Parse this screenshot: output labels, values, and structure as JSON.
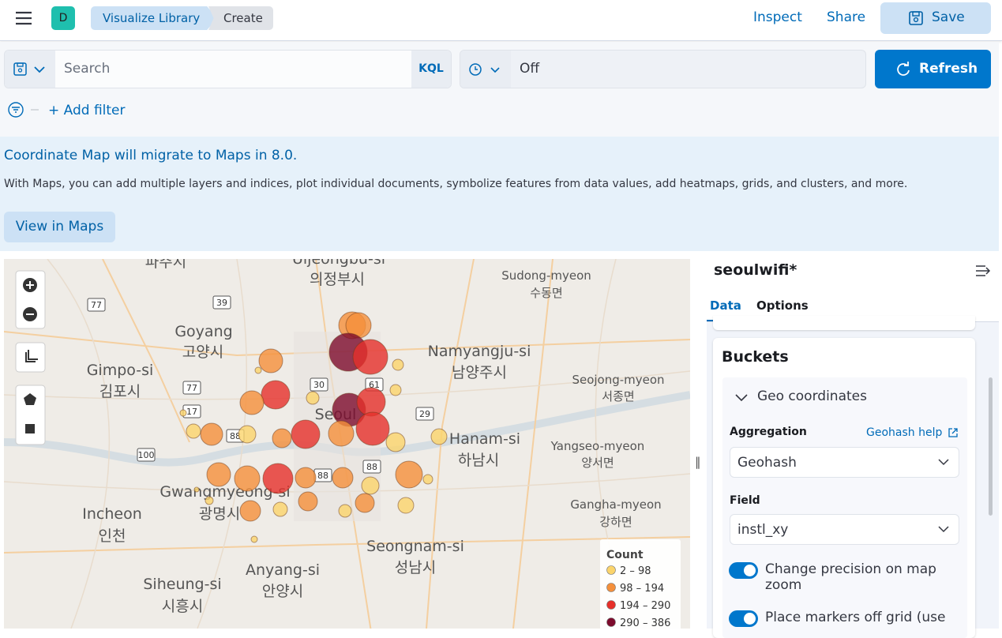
{
  "header": {
    "avatar": "D",
    "breadcrumbs": [
      "Visualize Library",
      "Create"
    ],
    "actions": {
      "inspect": "Inspect",
      "share": "Share",
      "save": "Save"
    }
  },
  "query_bar": {
    "search_placeholder": "Search",
    "language": "KQL",
    "refresh_interval": "Off",
    "refresh_button": "Refresh",
    "add_filter": "+ Add filter"
  },
  "callout": {
    "title": "Coordinate Map will migrate to Maps in 8.0.",
    "body": "With Maps, you can add multiple layers and indices, plot individual documents, symbolize features from data values, add heatmaps, grids, and clusters, and more.",
    "button": "View in Maps"
  },
  "map": {
    "places": [
      "Uijeongbu-si",
      "의정부시",
      "Sudong-myeon",
      "수동면",
      "Goyang",
      "고양시",
      "Namyangju-si",
      "남양주시",
      "Gimpo-si",
      "김포시",
      "Seojong-myeon",
      "서종면",
      "Seoul",
      "Hanam-si",
      "하남시",
      "Yangseo-myeon",
      "양서면",
      "Gwangmyeong-si",
      "광명시",
      "Gangha-myeon",
      "강하면",
      "Incheon",
      "인천",
      "Seongnam-si",
      "성남시",
      "Anyang-si",
      "안양시",
      "Siheung-si",
      "시흥시",
      "파주시"
    ],
    "road_numbers": [
      "77",
      "39",
      "77",
      "30",
      "61",
      "17",
      "29",
      "88",
      "100",
      "88",
      "88"
    ],
    "legend": {
      "title": "Count",
      "items": [
        {
          "label": "2 – 98",
          "color": "#fbd46b"
        },
        {
          "label": "98 – 194",
          "color": "#f5903b"
        },
        {
          "label": "194 – 290",
          "color": "#e6302a"
        },
        {
          "label": "290 – 386",
          "color": "#7d0b2d"
        }
      ]
    }
  },
  "sidebar": {
    "index_pattern": "seoulwifi*",
    "tabs": [
      "Data",
      "Options"
    ],
    "buckets": {
      "title": "Buckets",
      "accordion": "Geo coordinates",
      "aggregation_label": "Aggregation",
      "help_link": "Geohash help",
      "aggregation_value": "Geohash",
      "field_label": "Field",
      "field_value": "instl_xy",
      "toggles": [
        "Change precision on map zoom",
        "Place markers off grid (use"
      ]
    }
  }
}
